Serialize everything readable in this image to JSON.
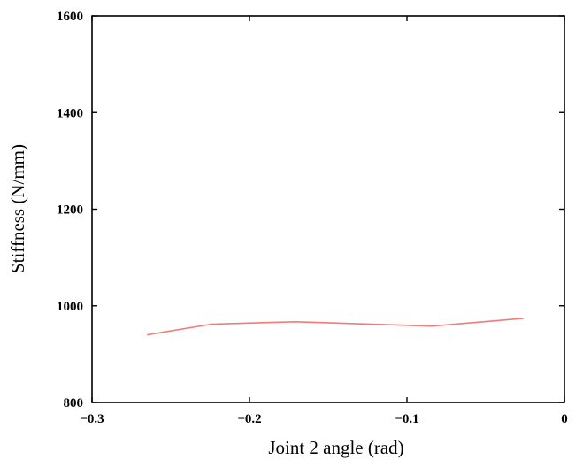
{
  "chart_data": {
    "type": "line",
    "xlabel": "Joint 2 angle (rad)",
    "ylabel": "Stiffness (N/mm)",
    "xlim": [
      -0.3,
      0
    ],
    "ylim": [
      800,
      1600
    ],
    "x_ticks": [
      -0.3,
      -0.2,
      -0.1,
      0
    ],
    "x_tick_labels": [
      "−0.3",
      "−0.2",
      "−0.1",
      "0"
    ],
    "y_ticks": [
      800,
      1000,
      1200,
      1400,
      1600
    ],
    "y_tick_labels": [
      "800",
      "1000",
      "1200",
      "1400",
      "1600"
    ],
    "grid": false,
    "series": [
      {
        "color": "#f07b7b",
        "x": [
          -0.265,
          -0.224,
          -0.171,
          -0.084,
          -0.026
        ],
        "y": [
          940,
          962,
          967,
          958,
          974
        ]
      }
    ]
  }
}
